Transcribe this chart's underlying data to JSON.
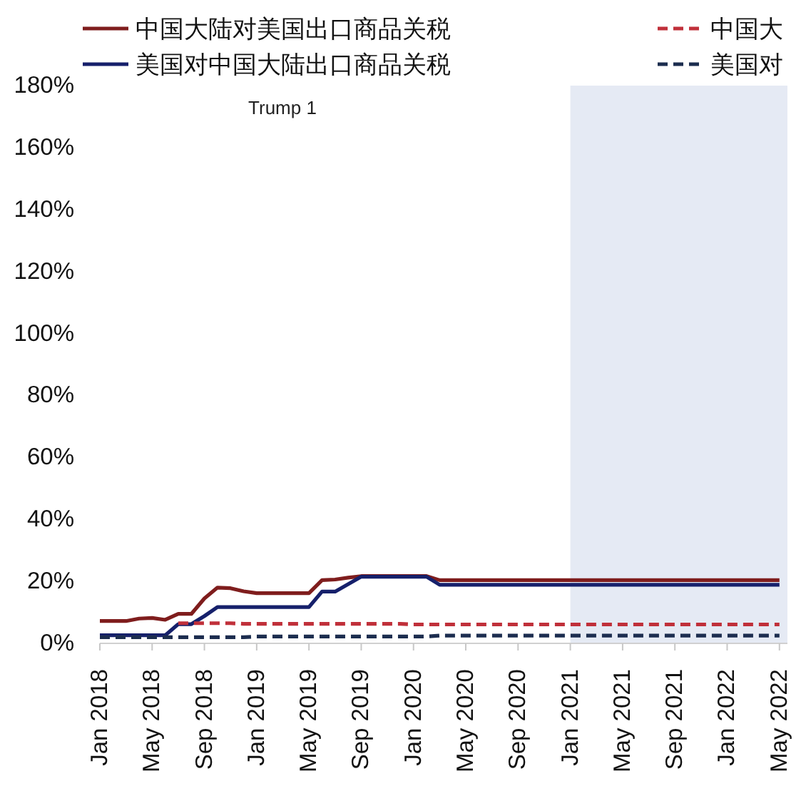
{
  "chart_data": {
    "type": "line",
    "x": [
      "2018-01",
      "2018-02",
      "2018-03",
      "2018-04",
      "2018-05",
      "2018-06",
      "2018-07",
      "2018-08",
      "2018-09",
      "2018-10",
      "2018-11",
      "2018-12",
      "2019-01",
      "2019-02",
      "2019-03",
      "2019-04",
      "2019-05",
      "2019-06",
      "2019-07",
      "2019-08",
      "2019-09",
      "2019-10",
      "2019-11",
      "2019-12",
      "2020-01",
      "2020-02",
      "2020-03",
      "2020-04",
      "2020-05",
      "2020-06",
      "2020-07",
      "2020-08",
      "2020-09",
      "2020-10",
      "2020-11",
      "2020-12",
      "2021-01",
      "2021-02",
      "2021-03",
      "2021-04",
      "2021-05",
      "2021-06",
      "2021-07",
      "2021-08",
      "2021-09",
      "2021-10",
      "2021-11",
      "2021-12",
      "2022-01",
      "2022-02",
      "2022-03",
      "2022-04",
      "2022-05"
    ],
    "series": [
      {
        "name": "中国大陆对美国出口商品关税",
        "color": "#7f1d1d",
        "line_style": "solid",
        "values": [
          7.2,
          7.2,
          7.2,
          8.0,
          8.2,
          7.6,
          9.5,
          9.5,
          14.5,
          18.0,
          17.8,
          16.8,
          16.2,
          16.2,
          16.2,
          16.2,
          16.2,
          20.4,
          20.6,
          21.2,
          21.7,
          21.7,
          21.7,
          21.7,
          21.7,
          21.7,
          20.4,
          20.4,
          20.4,
          20.4,
          20.4,
          20.4,
          20.4,
          20.4,
          20.4,
          20.4,
          20.4,
          20.4,
          20.4,
          20.4,
          20.4,
          20.4,
          20.4,
          20.4,
          20.4,
          20.4,
          20.4,
          20.4,
          20.4,
          20.4,
          20.4,
          20.4,
          20.4
        ]
      },
      {
        "name": "美国对中国大陆出口商品关税",
        "color": "#16206b",
        "line_style": "solid",
        "values": [
          2.6,
          2.6,
          2.6,
          2.6,
          2.6,
          2.6,
          6.2,
          6.2,
          8.8,
          11.7,
          11.7,
          11.7,
          11.7,
          11.7,
          11.7,
          11.7,
          11.7,
          16.7,
          16.7,
          19.1,
          21.5,
          21.5,
          21.5,
          21.5,
          21.5,
          21.5,
          18.9,
          18.9,
          18.9,
          18.9,
          18.9,
          18.9,
          18.9,
          18.9,
          18.9,
          18.9,
          18.9,
          18.9,
          18.9,
          18.9,
          18.9,
          18.9,
          18.9,
          18.9,
          18.9,
          18.9,
          18.9,
          18.9,
          18.9,
          18.9,
          18.9,
          18.9,
          18.9
        ]
      },
      {
        "name": "中国大",
        "color": "#c0303a",
        "line_style": "dashed",
        "values": [
          null,
          null,
          null,
          null,
          null,
          null,
          6.5,
          6.5,
          6.5,
          6.5,
          6.5,
          6.3,
          6.3,
          6.3,
          6.3,
          6.3,
          6.3,
          6.3,
          6.3,
          6.3,
          6.3,
          6.3,
          6.3,
          6.3,
          6.1,
          6.1,
          6.1,
          6.1,
          6.1,
          6.1,
          6.1,
          6.1,
          6.1,
          6.1,
          6.1,
          6.1,
          6.1,
          6.1,
          6.1,
          6.1,
          6.1,
          6.1,
          6.1,
          6.1,
          6.1,
          6.1,
          6.1,
          6.1,
          6.1,
          6.1,
          6.1,
          6.1,
          6.1
        ]
      },
      {
        "name": "美国对",
        "color": "#1c2d4f",
        "line_style": "dashed",
        "values": [
          2.0,
          2.0,
          2.0,
          2.0,
          2.0,
          2.0,
          2.0,
          2.0,
          2.0,
          2.0,
          2.0,
          2.0,
          2.2,
          2.2,
          2.2,
          2.2,
          2.2,
          2.2,
          2.2,
          2.2,
          2.2,
          2.2,
          2.2,
          2.2,
          2.2,
          2.2,
          2.5,
          2.5,
          2.5,
          2.5,
          2.5,
          2.5,
          2.5,
          2.5,
          2.5,
          2.5,
          2.5,
          2.5,
          2.5,
          2.5,
          2.5,
          2.5,
          2.5,
          2.5,
          2.5,
          2.5,
          2.5,
          2.5,
          2.5,
          2.5,
          2.5,
          2.5,
          2.5
        ]
      }
    ],
    "xlim": [
      "2018-01-01",
      "2022-05-20"
    ],
    "xticks": [
      {
        "value": "2018-01",
        "label": "Jan 2018"
      },
      {
        "value": "2018-05",
        "label": "May 2018"
      },
      {
        "value": "2018-09",
        "label": "Sep 2018"
      },
      {
        "value": "2019-01",
        "label": "Jan 2019"
      },
      {
        "value": "2019-05",
        "label": "May 2019"
      },
      {
        "value": "2019-09",
        "label": "Sep 2019"
      },
      {
        "value": "2020-01",
        "label": "Jan 2020"
      },
      {
        "value": "2020-05",
        "label": "May 2020"
      },
      {
        "value": "2020-09",
        "label": "Sep 2020"
      },
      {
        "value": "2021-01",
        "label": "Jan 2021"
      },
      {
        "value": "2021-05",
        "label": "May 2021"
      },
      {
        "value": "2021-09",
        "label": "Sep 2021"
      },
      {
        "value": "2022-01",
        "label": "Jan 2022"
      },
      {
        "value": "2022-05",
        "label": "May 2022"
      }
    ],
    "ylim": [
      0,
      180
    ],
    "yticks": [
      {
        "value": 0,
        "label": "0%"
      },
      {
        "value": 20,
        "label": "20%"
      },
      {
        "value": 40,
        "label": "40%"
      },
      {
        "value": 60,
        "label": "60%"
      },
      {
        "value": 80,
        "label": "80%"
      },
      {
        "value": 100,
        "label": "100%"
      },
      {
        "value": 120,
        "label": "120%"
      },
      {
        "value": 140,
        "label": "140%"
      },
      {
        "value": 160,
        "label": "160%"
      },
      {
        "value": 180,
        "label": "180%"
      }
    ],
    "bands": [
      {
        "axis": "x",
        "from": "2021-01",
        "to": "2022-05-20",
        "color": "#e5eaf4"
      }
    ],
    "annotations": [
      "Trump 1"
    ],
    "legend": "top"
  }
}
